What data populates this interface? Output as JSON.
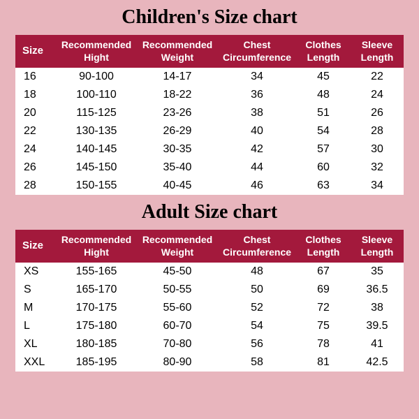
{
  "background_color": "#e8b5bd",
  "header_bg": "#a3193c",
  "header_fg": "#ffffff",
  "cell_fg": "#000000",
  "table_bg": "#ffffff",
  "title_fontsize": 28,
  "header_fontsize": 14,
  "cell_fontsize": 16,
  "children": {
    "title": "Children's Size chart",
    "columns": [
      "Size",
      "Recommended Hight",
      "Recommended Weight",
      "Chest Circumference",
      "Clothes Length",
      "Sleeve Length"
    ],
    "rows": [
      [
        "16",
        "90-100",
        "14-17",
        "34",
        "45",
        "22"
      ],
      [
        "18",
        "100-110",
        "18-22",
        "36",
        "48",
        "24"
      ],
      [
        "20",
        "115-125",
        "23-26",
        "38",
        "51",
        "26"
      ],
      [
        "22",
        "130-135",
        "26-29",
        "40",
        "54",
        "28"
      ],
      [
        "24",
        "140-145",
        "30-35",
        "42",
        "57",
        "30"
      ],
      [
        "26",
        "145-150",
        "35-40",
        "44",
        "60",
        "32"
      ],
      [
        "28",
        "150-155",
        "40-45",
        "46",
        "63",
        "34"
      ]
    ]
  },
  "adult": {
    "title": "Adult Size chart",
    "columns": [
      "Size",
      "Recommended Hight",
      "Recommended Weight",
      "Chest Circumference",
      "Clothes Length",
      "Sleeve Length"
    ],
    "rows": [
      [
        "XS",
        "155-165",
        "45-50",
        "48",
        "67",
        "35"
      ],
      [
        "S",
        "165-170",
        "50-55",
        "50",
        "69",
        "36.5"
      ],
      [
        "M",
        "170-175",
        "55-60",
        "52",
        "72",
        "38"
      ],
      [
        "L",
        "175-180",
        "60-70",
        "54",
        "75",
        "39.5"
      ],
      [
        "XL",
        "180-185",
        "70-80",
        "56",
        "78",
        "41"
      ],
      [
        "XXL",
        "185-195",
        "80-90",
        "58",
        "81",
        "42.5"
      ]
    ]
  }
}
